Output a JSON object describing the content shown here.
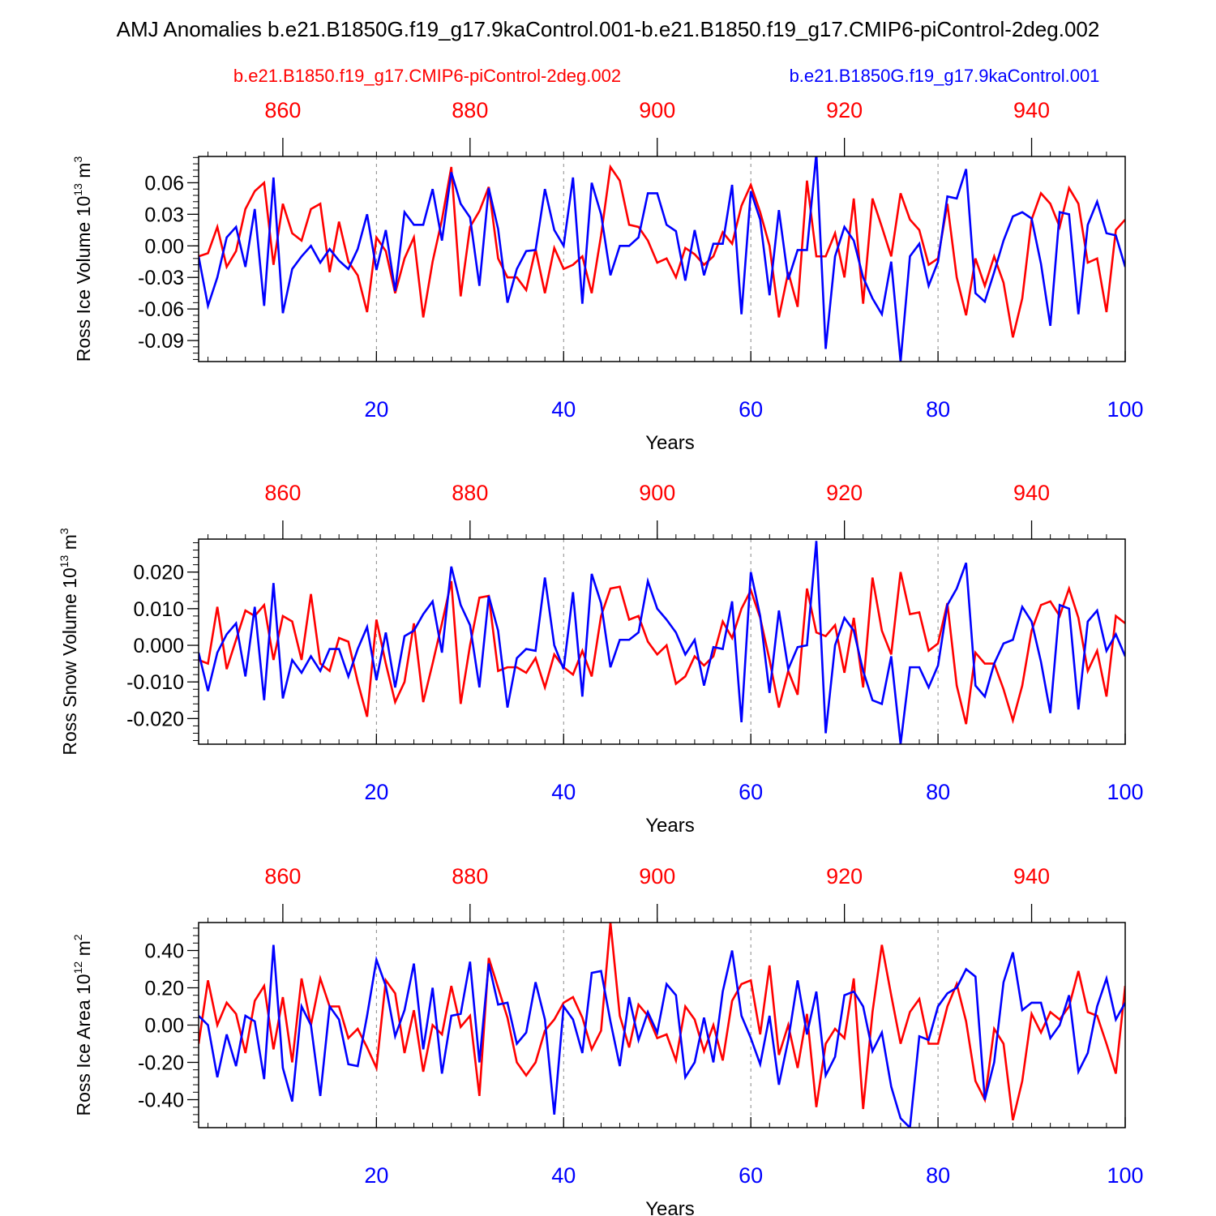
{
  "figure": {
    "title": "AMJ Anomalies b.e21.B1850G.f19_g17.9kaControl.001-b.e21.B1850.f19_g17.CMIP6-piControl-2deg.002",
    "legend_left": "b.e21.B1850.f19_g17.CMIP6-piControl-2deg.002",
    "legend_right": "b.e21.B1850G.f19_g17.9kaControl.001",
    "colors": {
      "red": "#ff0000",
      "blue": "#0000ff",
      "axis": "#000000",
      "grid": "#888888"
    }
  },
  "chart_data": [
    {
      "type": "line",
      "ylabel": "Ross Ice Volume 10^13 m^3",
      "ylabel_main": "Ross Ice Volume 10",
      "ylabel_exp1": "13",
      "ylabel_mid": " m",
      "ylabel_exp2": "3",
      "xlabel": "Years",
      "xlim": [
        1,
        100
      ],
      "ylim": [
        -0.11,
        0.085
      ],
      "yticks": [
        -0.09,
        -0.06,
        -0.03,
        0.0,
        0.03,
        0.06
      ],
      "ytick_labels": [
        "-0.09",
        "-0.06",
        "-0.03",
        "0.00",
        "0.03",
        "0.06"
      ],
      "xticks_bottom": [
        20,
        40,
        60,
        80,
        100
      ],
      "xtick_labels_bottom": [
        "20",
        "40",
        "60",
        "80",
        "100"
      ],
      "xticks_top": [
        10,
        30,
        50,
        70,
        90
      ],
      "xtick_labels_top": [
        "860",
        "880",
        "900",
        "920",
        "940"
      ],
      "vgrid": [
        20,
        40,
        60,
        80
      ],
      "series": [
        {
          "name": "b.e21.B1850.f19_g17.CMIP6-piControl-2deg.002",
          "color": "#ff0000",
          "values": [
            -0.01,
            -0.007,
            0.018,
            -0.02,
            -0.005,
            0.035,
            0.052,
            0.06,
            -0.018,
            0.04,
            0.012,
            0.005,
            0.035,
            0.04,
            -0.025,
            0.023,
            -0.015,
            -0.028,
            -0.063,
            0.008,
            -0.005,
            -0.045,
            -0.012,
            0.008,
            -0.068,
            -0.015,
            0.025,
            0.075,
            -0.048,
            0.018,
            0.033,
            0.056,
            -0.012,
            -0.03,
            -0.03,
            -0.042,
            -0.003,
            -0.045,
            -0.002,
            -0.022,
            -0.018,
            -0.01,
            -0.045,
            0.01,
            0.075,
            0.062,
            0.02,
            0.018,
            0.005,
            -0.016,
            -0.012,
            -0.03,
            -0.002,
            -0.008,
            -0.018,
            -0.01,
            0.013,
            0.002,
            0.038,
            0.058,
            0.032,
            0.0,
            -0.068,
            -0.025,
            -0.058,
            0.062,
            -0.01,
            -0.01,
            0.012,
            -0.03,
            0.045,
            -0.055,
            0.045,
            0.018,
            -0.01,
            0.05,
            0.025,
            0.015,
            -0.018,
            -0.012,
            0.04,
            -0.03,
            -0.066,
            -0.012,
            -0.038,
            -0.01,
            -0.035,
            -0.087,
            -0.05,
            0.025,
            0.05,
            0.04,
            0.018,
            0.055,
            0.04,
            -0.016,
            -0.012,
            -0.063,
            0.015,
            0.025
          ]
        },
        {
          "name": "b.e21.B1850G.f19_g17.9kaControl.001",
          "color": "#0000ff",
          "values": [
            -0.01,
            -0.057,
            -0.03,
            0.008,
            0.018,
            -0.02,
            0.035,
            -0.057,
            0.065,
            -0.064,
            -0.022,
            -0.01,
            0.0,
            -0.016,
            -0.003,
            -0.014,
            -0.022,
            -0.003,
            0.03,
            -0.023,
            0.015,
            -0.043,
            0.032,
            0.02,
            0.02,
            0.054,
            0.005,
            0.07,
            0.04,
            0.027,
            -0.038,
            0.055,
            0.016,
            -0.054,
            -0.022,
            -0.005,
            -0.004,
            0.054,
            0.015,
            0.0,
            0.065,
            -0.055,
            0.06,
            0.03,
            -0.028,
            0.0,
            0.0,
            0.008,
            0.05,
            0.05,
            0.02,
            0.014,
            -0.033,
            0.015,
            -0.028,
            0.002,
            0.002,
            0.058,
            -0.065,
            0.052,
            0.025,
            -0.047,
            0.034,
            -0.032,
            -0.004,
            -0.004,
            0.088,
            -0.098,
            -0.01,
            0.018,
            0.005,
            -0.03,
            -0.05,
            -0.065,
            -0.015,
            -0.11,
            -0.01,
            0.002,
            -0.038,
            -0.015,
            0.047,
            0.045,
            0.073,
            -0.045,
            -0.053,
            -0.025,
            0.005,
            0.028,
            0.032,
            0.026,
            -0.017,
            -0.076,
            0.032,
            0.03,
            -0.065,
            0.02,
            0.042,
            0.012,
            0.01,
            -0.02
          ]
        }
      ]
    },
    {
      "type": "line",
      "ylabel": "Ross Snow Volume 10^13 m^3",
      "ylabel_main": "Ross Snow Volume 10",
      "ylabel_exp1": "13",
      "ylabel_mid": " m",
      "ylabel_exp2": "3",
      "xlabel": "Years",
      "xlim": [
        1,
        100
      ],
      "ylim": [
        -0.027,
        0.029
      ],
      "yticks": [
        -0.02,
        -0.01,
        0.0,
        0.01,
        0.02
      ],
      "ytick_labels": [
        "-0.020",
        "-0.010",
        "0.000",
        "0.010",
        "0.020"
      ],
      "xticks_bottom": [
        20,
        40,
        60,
        80,
        100
      ],
      "xtick_labels_bottom": [
        "20",
        "40",
        "60",
        "80",
        "100"
      ],
      "xticks_top": [
        10,
        30,
        50,
        70,
        90
      ],
      "xtick_labels_top": [
        "860",
        "880",
        "900",
        "920",
        "940"
      ],
      "vgrid": [
        20,
        40,
        60,
        80
      ],
      "series": [
        {
          "name": "b.e21.B1850.f19_g17.CMIP6-piControl-2deg.002",
          "color": "#ff0000",
          "values": [
            -0.004,
            -0.005,
            0.0105,
            -0.0065,
            0.0015,
            0.0095,
            0.008,
            0.011,
            -0.004,
            0.008,
            0.0065,
            -0.004,
            0.014,
            -0.005,
            -0.007,
            0.002,
            0.001,
            -0.01,
            -0.0195,
            0.007,
            -0.005,
            -0.0155,
            -0.01,
            0.006,
            -0.0155,
            -0.005,
            0.006,
            0.0175,
            -0.016,
            0.0,
            0.013,
            0.0135,
            -0.007,
            -0.006,
            -0.006,
            -0.0075,
            -0.0035,
            -0.0115,
            -0.0025,
            -0.006,
            -0.008,
            -0.0015,
            -0.0085,
            0.008,
            0.0155,
            0.016,
            0.007,
            0.008,
            0.001,
            -0.0025,
            0.0,
            -0.0105,
            -0.0085,
            -0.003,
            -0.0055,
            -0.003,
            0.0065,
            0.002,
            0.01,
            0.015,
            0.0075,
            -0.004,
            -0.017,
            -0.007,
            -0.0135,
            0.0155,
            0.0035,
            0.0025,
            0.0055,
            -0.0075,
            0.0075,
            -0.0115,
            0.0185,
            0.004,
            -0.0025,
            0.02,
            0.0085,
            0.009,
            -0.0015,
            0.0005,
            0.0115,
            -0.011,
            -0.0215,
            -0.002,
            -0.005,
            -0.005,
            -0.012,
            -0.0205,
            -0.011,
            0.004,
            0.011,
            0.012,
            0.008,
            0.0155,
            0.0075,
            -0.007,
            -0.0015,
            -0.014,
            0.008,
            0.006
          ]
        },
        {
          "name": "b.e21.B1850G.f19_g17.9kaControl.001",
          "color": "#0000ff",
          "values": [
            -0.002,
            -0.0125,
            -0.002,
            0.003,
            0.006,
            -0.0085,
            0.0105,
            -0.015,
            0.017,
            -0.0145,
            -0.004,
            -0.0075,
            -0.003,
            -0.007,
            -0.001,
            -0.001,
            -0.0085,
            -0.001,
            0.005,
            -0.0095,
            0.0035,
            -0.0115,
            0.0025,
            0.004,
            0.0085,
            0.012,
            -0.002,
            0.0215,
            0.011,
            0.0055,
            -0.0115,
            0.0135,
            0.004,
            -0.017,
            -0.0035,
            -0.001,
            -0.0015,
            0.0185,
            0.0,
            -0.0065,
            0.0145,
            -0.014,
            0.0195,
            0.0115,
            -0.006,
            0.0015,
            0.0015,
            0.0035,
            0.0175,
            0.01,
            0.007,
            0.0035,
            -0.0025,
            0.0015,
            -0.011,
            -0.0005,
            -0.001,
            0.012,
            -0.021,
            0.02,
            0.008,
            -0.013,
            0.0095,
            -0.0065,
            -0.0005,
            0.0,
            0.0285,
            -0.024,
            0.0,
            0.0075,
            0.004,
            -0.007,
            -0.015,
            -0.016,
            -0.003,
            -0.027,
            -0.006,
            -0.006,
            -0.0115,
            -0.0055,
            0.011,
            0.0155,
            0.0225,
            -0.011,
            -0.014,
            -0.005,
            0.0005,
            0.0015,
            0.0105,
            0.0065,
            -0.0045,
            -0.0185,
            0.011,
            0.01,
            -0.0175,
            0.0065,
            0.0095,
            -0.0015,
            0.003,
            -0.003
          ]
        }
      ]
    },
    {
      "type": "line",
      "ylabel": "Ross Ice Area 10^12 m^2",
      "ylabel_main": "Ross Ice Area 10",
      "ylabel_exp1": "12",
      "ylabel_mid": " m",
      "ylabel_exp2": "2",
      "xlabel": "Years",
      "xlim": [
        1,
        100
      ],
      "ylim": [
        -0.55,
        0.55
      ],
      "yticks": [
        -0.4,
        -0.2,
        0.0,
        0.2,
        0.4
      ],
      "ytick_labels": [
        "-0.40",
        "-0.20",
        "0.00",
        "0.20",
        "0.40"
      ],
      "xticks_bottom": [
        20,
        40,
        60,
        80,
        100
      ],
      "xtick_labels_bottom": [
        "20",
        "40",
        "60",
        "80",
        "100"
      ],
      "xticks_top": [
        10,
        30,
        50,
        70,
        90
      ],
      "xtick_labels_top": [
        "860",
        "880",
        "900",
        "920",
        "940"
      ],
      "vgrid": [
        20,
        40,
        60,
        80
      ],
      "series": [
        {
          "name": "b.e21.B1850.f19_g17.CMIP6-piControl-2deg.002",
          "color": "#ff0000",
          "values": [
            -0.1,
            0.24,
            0.0,
            0.12,
            0.06,
            -0.15,
            0.13,
            0.21,
            -0.13,
            0.15,
            -0.2,
            0.25,
            0.0,
            0.25,
            0.1,
            0.1,
            -0.07,
            -0.02,
            -0.12,
            -0.23,
            0.24,
            0.17,
            -0.15,
            0.08,
            -0.25,
            0.0,
            -0.05,
            0.21,
            -0.01,
            0.05,
            -0.38,
            0.36,
            0.2,
            0.04,
            -0.2,
            -0.27,
            -0.2,
            -0.03,
            0.03,
            0.12,
            0.15,
            0.04,
            -0.13,
            -0.03,
            0.55,
            0.05,
            -0.12,
            0.11,
            0.05,
            -0.07,
            -0.05,
            -0.19,
            0.1,
            0.03,
            -0.14,
            0.0,
            -0.19,
            0.13,
            0.22,
            0.24,
            -0.05,
            0.32,
            -0.16,
            0.0,
            -0.23,
            0.06,
            -0.44,
            -0.1,
            -0.02,
            -0.07,
            0.25,
            -0.45,
            0.07,
            0.43,
            0.16,
            -0.1,
            0.07,
            0.14,
            -0.1,
            -0.1,
            0.1,
            0.22,
            0.02,
            -0.3,
            -0.4,
            -0.02,
            -0.1,
            -0.51,
            -0.3,
            0.06,
            -0.04,
            0.07,
            0.03,
            0.1,
            0.29,
            0.07,
            0.05,
            -0.1,
            -0.26,
            0.21
          ]
        },
        {
          "name": "b.e21.B1850G.f19_g17.9kaControl.001",
          "color": "#0000ff",
          "values": [
            0.05,
            0.0,
            -0.28,
            -0.05,
            -0.22,
            0.05,
            0.02,
            -0.29,
            0.43,
            -0.23,
            -0.41,
            0.1,
            0.0,
            -0.38,
            0.1,
            0.03,
            -0.21,
            -0.22,
            0.05,
            0.35,
            0.21,
            -0.06,
            0.08,
            0.33,
            -0.13,
            0.2,
            -0.26,
            0.05,
            0.06,
            0.34,
            -0.2,
            0.33,
            0.11,
            0.12,
            -0.1,
            -0.04,
            0.23,
            0.03,
            -0.48,
            0.1,
            0.03,
            -0.15,
            0.28,
            0.29,
            0.02,
            -0.22,
            0.15,
            -0.08,
            0.07,
            -0.04,
            0.22,
            0.16,
            -0.28,
            -0.2,
            0.04,
            -0.2,
            0.18,
            0.4,
            0.05,
            -0.07,
            -0.21,
            0.05,
            -0.32,
            -0.08,
            0.24,
            -0.05,
            0.18,
            -0.27,
            -0.17,
            0.16,
            0.18,
            0.1,
            -0.14,
            -0.04,
            -0.33,
            -0.5,
            -0.55,
            -0.06,
            -0.08,
            0.1,
            0.17,
            0.2,
            0.3,
            0.26,
            -0.4,
            -0.2,
            0.23,
            0.39,
            0.08,
            0.12,
            0.12,
            -0.07,
            0.0,
            0.16,
            -0.25,
            -0.15,
            0.1,
            0.25,
            0.03,
            0.12
          ]
        }
      ]
    }
  ]
}
